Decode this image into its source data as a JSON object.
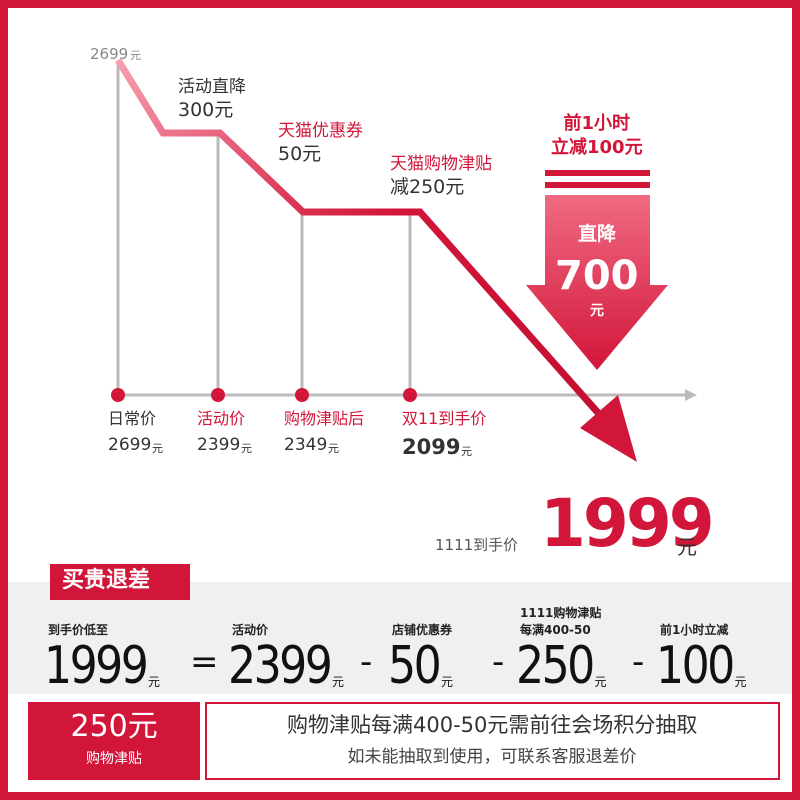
{
  "top_price": {
    "value": "2699",
    "unit": "元"
  },
  "steps": [
    {
      "title": "活动直降",
      "amount": "300元"
    },
    {
      "title": "天猫优惠券",
      "amount": "50元"
    },
    {
      "title": "天猫购物津贴",
      "amount": "减250元"
    }
  ],
  "big_arrow": {
    "line1": "前1小时",
    "line2": "立减100元",
    "title": "直降",
    "value": "700",
    "unit": "元"
  },
  "axis_points": [
    {
      "label": "日常价",
      "price": "2699",
      "unit": "元"
    },
    {
      "label": "活动价",
      "price": "2399",
      "unit": "元"
    },
    {
      "label": "购物津贴后",
      "price": "2349",
      "unit": "元"
    },
    {
      "label": "双11到手价",
      "price": "2099",
      "unit": "元"
    }
  ],
  "final": {
    "label": "1111到手价",
    "price": "1999",
    "unit": "元"
  },
  "section_title": "买贵退差",
  "equation": {
    "items": [
      {
        "label": [
          "到手价低至"
        ],
        "value": "1999",
        "unit": "元"
      },
      {
        "label": [
          "活动价"
        ],
        "value": "2399",
        "unit": "元"
      },
      {
        "label": [
          "店铺优惠券"
        ],
        "value": "50",
        "unit": "元"
      },
      {
        "label": [
          "1111购物津贴",
          "每满400-50"
        ],
        "value": "250",
        "unit": "元"
      },
      {
        "label": [
          "前1小时立减"
        ],
        "value": "100",
        "unit": "元"
      }
    ],
    "operators": [
      "=",
      "-",
      "-",
      "-"
    ]
  },
  "footer": {
    "badge_value": "250元",
    "badge_label": "购物津贴",
    "line1": "购物津贴每满400-50元需前往会场积分抽取",
    "line2": "如未能抽取到使用，可联系客服退差价"
  }
}
